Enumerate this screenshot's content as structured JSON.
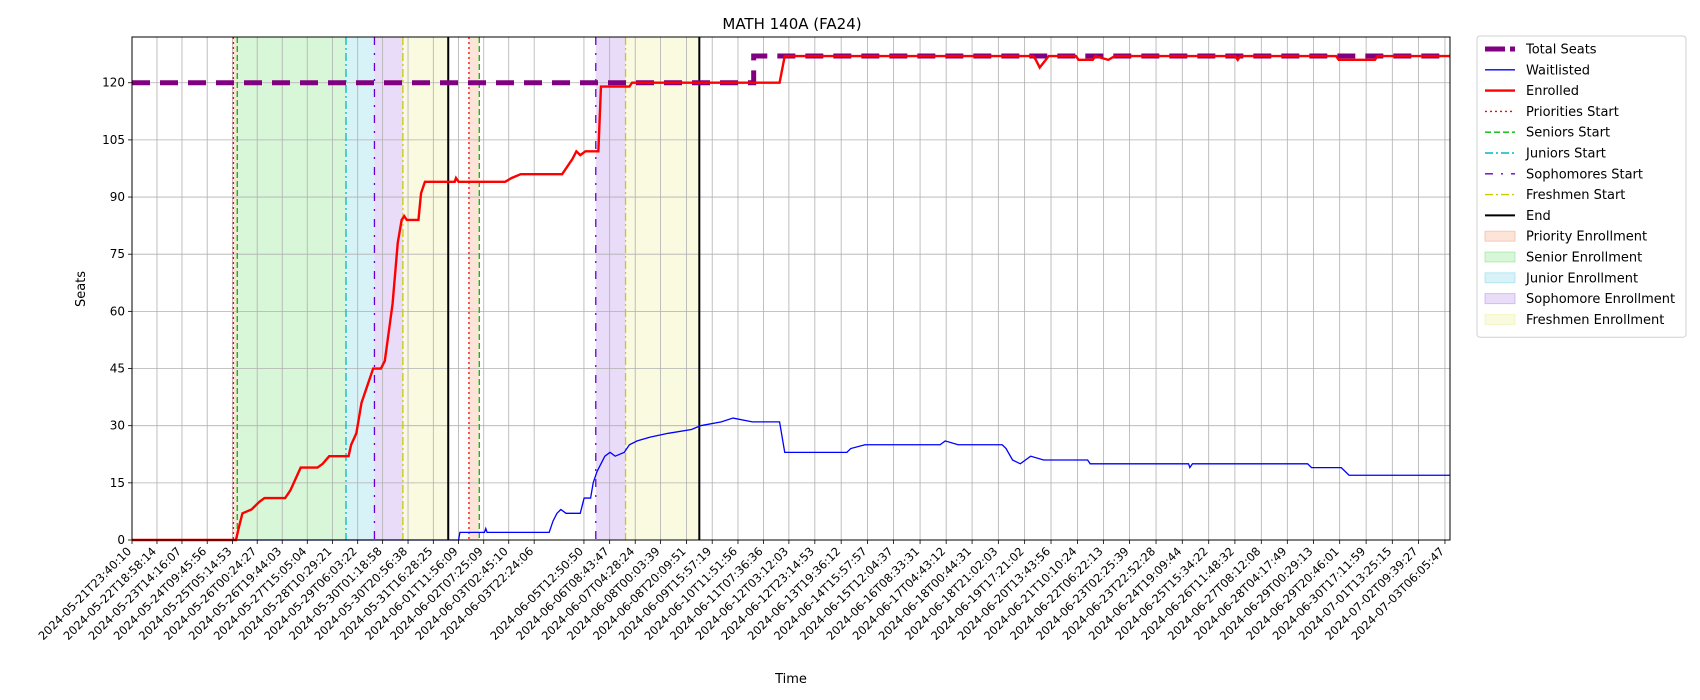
{
  "chart_data": {
    "type": "line",
    "title": "MATH 140A (FA24)",
    "xlabel": "Time",
    "ylabel": "Seats",
    "ylim": [
      0,
      132
    ],
    "yticks": [
      0,
      15,
      30,
      45,
      60,
      75,
      90,
      105,
      120
    ],
    "x_type": "datetime",
    "xlim": [
      "2024-05-21T23:40:10",
      "2024-07-03T10:00:00"
    ],
    "xticks": [
      "2024-05-21T23:40:10",
      "2024-05-22T18:58:14",
      "2024-05-23T14:16:07",
      "2024-05-24T09:45:56",
      "2024-05-25T05:14:53",
      "2024-05-26T00:24:27",
      "2024-05-26T19:44:03",
      "2024-05-27T15:05:04",
      "2024-05-28T10:29:21",
      "2024-05-29T06:03:22",
      "2024-05-30T01:18:58",
      "2024-05-30T20:56:38",
      "2024-05-31T16:28:25",
      "2024-06-01T11:56:09",
      "2024-06-02T07:25:09",
      "2024-06-03T02:45:10",
      "2024-06-03T22:24:06",
      "2024-06-05T12:50:50",
      "2024-06-06T08:43:47",
      "2024-06-07T04:28:24",
      "2024-06-08T00:03:39",
      "2024-06-08T20:09:51",
      "2024-06-09T15:57:19",
      "2024-06-10T11:51:56",
      "2024-06-11T07:36:36",
      "2024-06-12T03:12:03",
      "2024-06-12T23:14:53",
      "2024-06-13T19:36:12",
      "2024-06-14T15:57:57",
      "2024-06-15T12:04:37",
      "2024-06-16T08:33:31",
      "2024-06-17T04:43:12",
      "2024-06-18T00:44:31",
      "2024-06-18T21:02:03",
      "2024-06-19T17:21:02",
      "2024-06-20T13:43:56",
      "2024-06-21T10:10:24",
      "2024-06-22T06:22:13",
      "2024-06-23T02:25:39",
      "2024-06-23T22:52:28",
      "2024-06-24T19:09:44",
      "2024-06-25T15:34:22",
      "2024-06-26T11:48:32",
      "2024-06-27T08:12:08",
      "2024-06-28T04:17:49",
      "2024-06-29T00:29:13",
      "2024-06-29T20:46:01",
      "2024-06-30T17:11:59",
      "2024-07-01T13:25:15",
      "2024-07-02T09:39:27",
      "2024-07-03T06:05:47"
    ],
    "grid": true,
    "legend_placement": "outside upper right",
    "series": [
      {
        "name": "Total Seats",
        "color": "#800080",
        "style": "dashed-thick",
        "points": [
          [
            "2024-05-21T23:40:10",
            120
          ],
          [
            "2024-06-11T00:00:00",
            120
          ],
          [
            "2024-06-11T00:00:00",
            123
          ],
          [
            "2024-06-11T00:00:00",
            127
          ],
          [
            "2024-06-11T12:00:00",
            127
          ],
          [
            "2024-07-03T10:00:00",
            127
          ]
        ]
      },
      {
        "name": "Waitlisted",
        "color": "#0000ff",
        "style": "solid-thin",
        "points": [
          [
            "2024-05-21T23:40:10",
            0
          ],
          [
            "2024-06-01T12:00:00",
            0
          ],
          [
            "2024-06-01T13:00:00",
            2
          ],
          [
            "2024-06-02T08:00:00",
            2
          ],
          [
            "2024-06-02T09:00:00",
            3
          ],
          [
            "2024-06-02T10:00:00",
            2
          ],
          [
            "2024-06-04T10:00:00",
            2
          ],
          [
            "2024-06-04T13:00:00",
            5
          ],
          [
            "2024-06-04T16:00:00",
            7
          ],
          [
            "2024-06-04T19:00:00",
            8
          ],
          [
            "2024-06-04T23:00:00",
            7
          ],
          [
            "2024-06-05T10:00:00",
            7
          ],
          [
            "2024-06-05T13:00:00",
            11
          ],
          [
            "2024-06-05T18:00:00",
            11
          ],
          [
            "2024-06-05T20:00:00",
            15
          ],
          [
            "2024-06-05T23:00:00",
            18
          ],
          [
            "2024-06-06T02:00:00",
            20
          ],
          [
            "2024-06-06T05:00:00",
            22
          ],
          [
            "2024-06-06T09:00:00",
            23
          ],
          [
            "2024-06-06T13:00:00",
            22
          ],
          [
            "2024-06-06T20:00:00",
            23
          ],
          [
            "2024-06-07T00:00:00",
            25
          ],
          [
            "2024-06-07T06:00:00",
            26
          ],
          [
            "2024-06-07T16:00:00",
            27
          ],
          [
            "2024-06-08T06:00:00",
            28
          ],
          [
            "2024-06-09T00:00:00",
            29
          ],
          [
            "2024-06-09T07:00:00",
            30
          ],
          [
            "2024-06-09T23:00:00",
            31
          ],
          [
            "2024-06-10T08:00:00",
            32
          ],
          [
            "2024-06-10T23:00:00",
            31
          ],
          [
            "2024-06-11T20:00:00",
            31
          ],
          [
            "2024-06-12T00:00:00",
            23
          ],
          [
            "2024-06-14T00:00:00",
            23
          ],
          [
            "2024-06-14T03:00:00",
            24
          ],
          [
            "2024-06-14T14:00:00",
            25
          ],
          [
            "2024-06-17T00:00:00",
            25
          ],
          [
            "2024-06-17T04:00:00",
            26
          ],
          [
            "2024-06-17T14:00:00",
            25
          ],
          [
            "2024-06-19T00:00:00",
            25
          ],
          [
            "2024-06-19T03:00:00",
            24
          ],
          [
            "2024-06-19T08:00:00",
            21
          ],
          [
            "2024-06-19T14:00:00",
            20
          ],
          [
            "2024-06-19T22:00:00",
            22
          ],
          [
            "2024-06-20T08:00:00",
            21
          ],
          [
            "2024-06-21T18:00:00",
            21
          ],
          [
            "2024-06-21T20:00:00",
            20
          ],
          [
            "2024-06-25T00:00:00",
            20
          ],
          [
            "2024-06-25T01:00:00",
            19
          ],
          [
            "2024-06-25T03:00:00",
            20
          ],
          [
            "2024-06-28T20:00:00",
            20
          ],
          [
            "2024-06-28T23:00:00",
            19
          ],
          [
            "2024-06-29T22:00:00",
            19
          ],
          [
            "2024-06-30T04:00:00",
            17
          ],
          [
            "2024-07-03T10:00:00",
            17
          ]
        ]
      },
      {
        "name": "Enrolled",
        "color": "#ff0000",
        "style": "solid-thick",
        "points": [
          [
            "2024-05-21T23:40:10",
            0
          ],
          [
            "2024-05-25T08:00:00",
            0
          ],
          [
            "2024-05-25T10:00:00",
            3
          ],
          [
            "2024-05-25T13:00:00",
            7
          ],
          [
            "2024-05-25T20:00:00",
            8
          ],
          [
            "2024-05-26T02:00:00",
            10
          ],
          [
            "2024-05-26T06:00:00",
            11
          ],
          [
            "2024-05-26T22:00:00",
            11
          ],
          [
            "2024-05-27T02:00:00",
            13
          ],
          [
            "2024-05-27T06:00:00",
            16
          ],
          [
            "2024-05-27T10:00:00",
            19
          ],
          [
            "2024-05-27T23:00:00",
            19
          ],
          [
            "2024-05-28T03:00:00",
            20
          ],
          [
            "2024-05-28T08:00:00",
            22
          ],
          [
            "2024-05-28T23:00:00",
            22
          ],
          [
            "2024-05-29T01:00:00",
            25
          ],
          [
            "2024-05-29T05:00:00",
            28
          ],
          [
            "2024-05-29T09:00:00",
            36
          ],
          [
            "2024-05-29T14:00:00",
            41
          ],
          [
            "2024-05-29T18:00:00",
            45
          ],
          [
            "2024-05-30T00:00:00",
            45
          ],
          [
            "2024-05-30T03:00:00",
            47
          ],
          [
            "2024-05-30T05:00:00",
            52
          ],
          [
            "2024-05-30T09:00:00",
            62
          ],
          [
            "2024-05-30T13:00:00",
            78
          ],
          [
            "2024-05-30T16:00:00",
            84
          ],
          [
            "2024-05-30T18:00:00",
            85
          ],
          [
            "2024-05-30T20:00:00",
            84
          ],
          [
            "2024-05-31T05:00:00",
            84
          ],
          [
            "2024-05-31T07:00:00",
            91
          ],
          [
            "2024-05-31T10:00:00",
            94
          ],
          [
            "2024-06-01T09:00:00",
            94
          ],
          [
            "2024-06-01T10:00:00",
            95
          ],
          [
            "2024-06-01T12:00:00",
            94
          ],
          [
            "2024-06-03T00:00:00",
            94
          ],
          [
            "2024-06-03T05:00:00",
            95
          ],
          [
            "2024-06-03T12:00:00",
            96
          ],
          [
            "2024-06-04T20:00:00",
            96
          ],
          [
            "2024-06-05T00:00:00",
            98
          ],
          [
            "2024-06-05T04:00:00",
            100
          ],
          [
            "2024-06-05T07:00:00",
            102
          ],
          [
            "2024-06-05T10:00:00",
            101
          ],
          [
            "2024-06-05T14:00:00",
            102
          ],
          [
            "2024-06-06T00:00:00",
            102
          ],
          [
            "2024-06-06T02:00:00",
            119
          ],
          [
            "2024-06-07T00:00:00",
            119
          ],
          [
            "2024-06-07T02:00:00",
            120
          ],
          [
            "2024-06-11T20:00:00",
            120
          ],
          [
            "2024-06-12T00:00:00",
            127
          ],
          [
            "2024-06-20T00:00:00",
            127
          ],
          [
            "2024-06-20T02:00:00",
            126
          ],
          [
            "2024-06-20T05:00:00",
            124
          ],
          [
            "2024-06-20T12:00:00",
            127
          ],
          [
            "2024-06-21T09:00:00",
            127
          ],
          [
            "2024-06-21T11:00:00",
            126
          ],
          [
            "2024-06-21T22:00:00",
            126
          ],
          [
            "2024-06-22T00:00:00",
            127
          ],
          [
            "2024-06-22T10:00:00",
            126
          ],
          [
            "2024-06-22T15:00:00",
            127
          ],
          [
            "2024-06-26T12:00:00",
            127
          ],
          [
            "2024-06-26T14:00:00",
            126
          ],
          [
            "2024-06-26T16:00:00",
            127
          ],
          [
            "2024-06-29T18:00:00",
            127
          ],
          [
            "2024-06-29T20:00:00",
            126
          ],
          [
            "2024-07-01T00:00:00",
            126
          ],
          [
            "2024-07-01T02:00:00",
            127
          ],
          [
            "2024-07-03T10:00:00",
            127
          ]
        ]
      }
    ],
    "vertical_markers": [
      {
        "name": "Priorities Start",
        "color": "#ff0000",
        "style": "dotted",
        "x": [
          "2024-05-25T06:00:00",
          "2024-06-01T20:00:00"
        ]
      },
      {
        "name": "Seniors Start",
        "color": "#00bb00",
        "style": "dashed",
        "x": [
          "2024-05-25T09:00:00",
          "2024-06-02T04:00:00"
        ]
      },
      {
        "name": "Juniors Start",
        "color": "#00bbbb",
        "style": "dashdot",
        "x": [
          "2024-05-28T21:00:00"
        ]
      },
      {
        "name": "Sophomores Start",
        "color": "#6600cc",
        "style": "dashdot-sparse",
        "x": [
          "2024-05-29T19:00:00",
          "2024-06-05T22:00:00"
        ]
      },
      {
        "name": "Freshmen Start",
        "color": "#cccc00",
        "style": "dashdot",
        "x": [
          "2024-05-30T17:00:00",
          "2024-06-06T21:00:00"
        ]
      },
      {
        "name": "End",
        "color": "#000000",
        "style": "solid",
        "x": [
          "2024-06-01T04:00:00",
          "2024-06-09T06:00:00"
        ]
      }
    ],
    "shaded_regions": [
      {
        "name": "Priority Enrollment",
        "color": "#f4a582",
        "spans": [
          [
            "2024-05-25T06:00:00",
            "2024-05-25T09:00:00"
          ],
          [
            "2024-06-01T20:00:00",
            "2024-06-02T04:00:00"
          ]
        ]
      },
      {
        "name": "Senior Enrollment",
        "color": "#7fe07f",
        "spans": [
          [
            "2024-05-25T09:00:00",
            "2024-05-28T21:00:00"
          ]
        ]
      },
      {
        "name": "Junior Enrollment",
        "color": "#7fd8e8",
        "spans": [
          [
            "2024-05-28T21:00:00",
            "2024-05-29T19:00:00"
          ]
        ]
      },
      {
        "name": "Sophomore Enrollment",
        "color": "#b58ae8",
        "spans": [
          [
            "2024-05-29T19:00:00",
            "2024-05-30T17:00:00"
          ],
          [
            "2024-06-05T22:00:00",
            "2024-06-06T21:00:00"
          ]
        ]
      },
      {
        "name": "Freshmen Enrollment",
        "color": "#eeee9a",
        "spans": [
          [
            "2024-05-30T17:00:00",
            "2024-06-01T04:00:00"
          ],
          [
            "2024-06-06T21:00:00",
            "2024-06-09T06:00:00"
          ]
        ]
      }
    ]
  }
}
